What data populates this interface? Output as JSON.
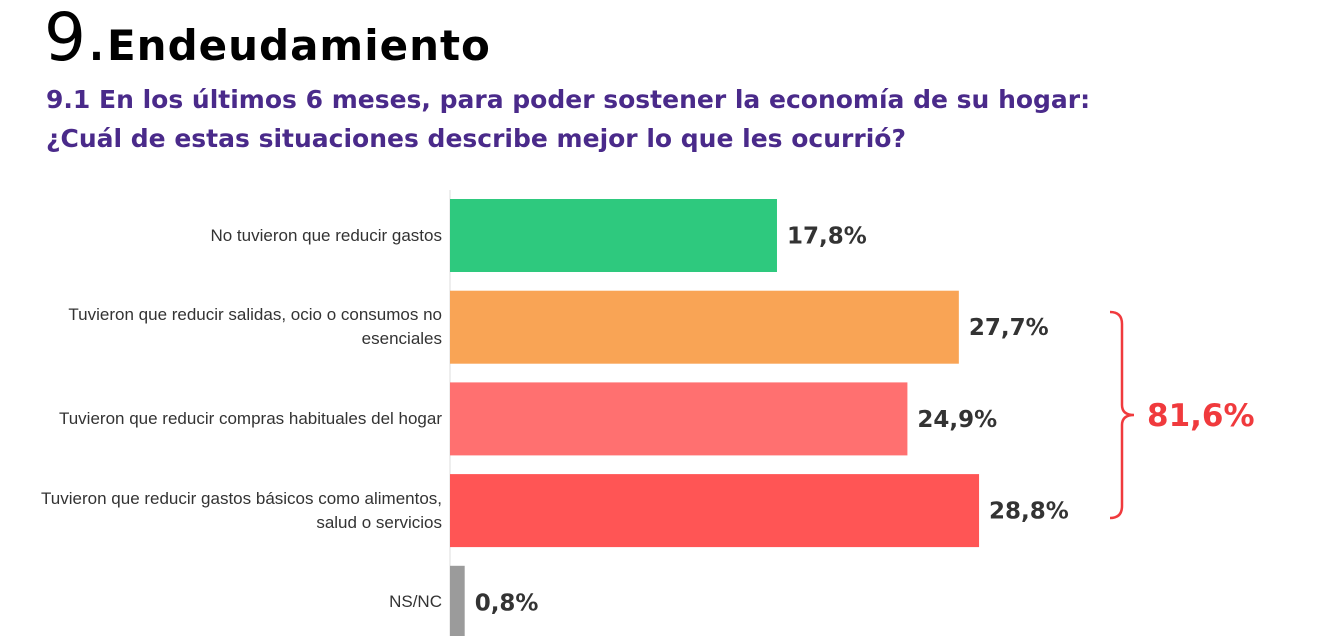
{
  "header": {
    "number": "9.",
    "title": "Endeudamiento",
    "question_line1": "9.1 En los últimos 6 meses, para poder sostener la economía de su hogar:",
    "question_line2": "¿Cuál de estas situaciones describe mejor lo que les ocurrió?"
  },
  "chart_data": {
    "type": "bar",
    "orientation": "horizontal",
    "categories": [
      "No tuvieron que reducir gastos",
      "Tuvieron que reducir salidas, ocio o consumos no esenciales",
      "Tuvieron que reducir compras habituales del hogar",
      "Tuvieron que reducir gastos básicos como alimentos, salud o servicios",
      "NS/NC"
    ],
    "values": [
      17.8,
      27.7,
      24.9,
      28.8,
      0.8
    ],
    "labels": [
      "17,8%",
      "27,7%",
      "24,9%",
      "28,8%",
      "0,8%"
    ],
    "colors": [
      "#2ec97e",
      "#f9a455",
      "#ff7070",
      "#ff5555",
      "#9b9b9b"
    ],
    "annotation": {
      "text": "81,6%",
      "covers": [
        1,
        2,
        3
      ],
      "color": "#f03a3d"
    },
    "xlim": [
      0,
      30
    ]
  }
}
